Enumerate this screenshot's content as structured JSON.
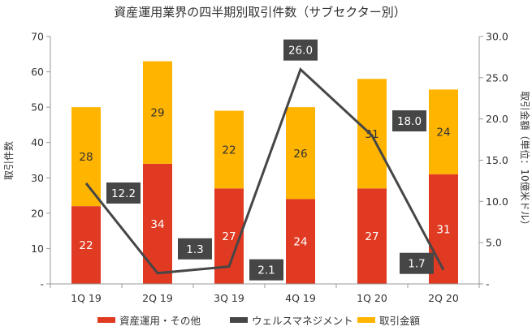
{
  "chart_data": {
    "type": "bar",
    "title": "資産運用業界の四半期別取引件数（サブセクター別）",
    "categories": [
      "1Q 19",
      "2Q 19",
      "3Q 19",
      "4Q 19",
      "1Q 20",
      "2Q 20"
    ],
    "series": [
      {
        "name": "資産運用・その他",
        "type": "bar",
        "axis": "left",
        "values": [
          22,
          34,
          27,
          24,
          27,
          31
        ]
      },
      {
        "name": "ウェルスマネジメント",
        "type": "bar",
        "axis": "left",
        "values": [
          28,
          29,
          22,
          26,
          31,
          24
        ]
      },
      {
        "name": "取引金額",
        "type": "line",
        "axis": "right",
        "values": [
          12.2,
          1.3,
          2.1,
          26.0,
          18.0,
          1.7
        ]
      }
    ],
    "line_labels": [
      "12.2",
      "1.3",
      "2.1",
      "26.0",
      "18.0",
      "1.7"
    ],
    "ylabel_left": "取引件数",
    "ylabel_right": "取引金額（単位：10億米ドル）",
    "ylim_left": [
      0,
      70
    ],
    "ylim_right": [
      0,
      30
    ],
    "yticks_left": [
      "-",
      "10",
      "20",
      "30",
      "40",
      "50",
      "60",
      "70"
    ],
    "yticks_right": [
      "-",
      "5.0",
      "10.0",
      "15.0",
      "20.0",
      "25.0",
      "30.0"
    ],
    "grid": false,
    "legend_position": "bottom",
    "colors": {
      "asset_mgmt": "#e03a23",
      "wealth_mgmt": "#ffb400",
      "line": "#464646",
      "axis": "#999999"
    },
    "legend": [
      {
        "label": "資産運用・その他",
        "color": "#e03a23"
      },
      {
        "label": "ウェルスマネジメント",
        "color": "#464646"
      },
      {
        "label": "取引金額",
        "color": "#ffb400"
      }
    ]
  }
}
